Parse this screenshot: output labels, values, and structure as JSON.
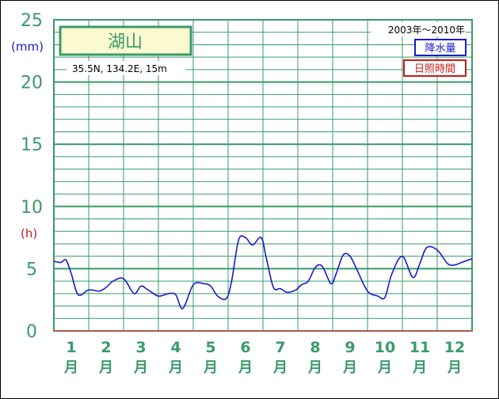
{
  "chart_data": {
    "type": "line",
    "station": "湖山",
    "coordinates": "35.5N,  134.2E,  15m",
    "period": "2003年〜2010年",
    "legend": [
      {
        "label": "降水量",
        "color": "#1a1acc"
      },
      {
        "label": "日照時間",
        "color": "#cc1a1a"
      }
    ],
    "y_unit_precip": "(mm)",
    "y_unit_sun": "(h)",
    "yticks": [
      "0",
      "5",
      "10",
      "15",
      "20",
      "25"
    ],
    "ylim": [
      0,
      25
    ],
    "months": [
      "1",
      "2",
      "3",
      "4",
      "5",
      "6",
      "7",
      "8",
      "9",
      "10",
      "11",
      "12"
    ],
    "month_char": "月",
    "series": [
      {
        "name": "降水量",
        "color": "#1a1acc",
        "x": [
          0.5,
          0.7,
          0.85,
          1.0,
          1.2,
          1.5,
          1.8,
          2.0,
          2.2,
          2.5,
          2.8,
          3.0,
          3.2,
          3.5,
          3.8,
          4.0,
          4.2,
          4.5,
          4.8,
          5.0,
          5.2,
          5.45,
          5.6,
          5.8,
          6.0,
          6.2,
          6.45,
          6.6,
          6.8,
          7.0,
          7.2,
          7.45,
          7.6,
          7.8,
          8.0,
          8.2,
          8.45,
          8.6,
          8.8,
          9.0,
          9.2,
          9.5,
          9.8,
          10.0,
          10.2,
          10.5,
          10.8,
          11.0,
          11.2,
          11.5,
          11.8,
          12.0,
          12.2,
          12.5
        ],
        "y": [
          5.6,
          5.5,
          5.7,
          4.6,
          2.9,
          3.3,
          3.2,
          3.5,
          4.0,
          4.2,
          3.0,
          3.6,
          3.3,
          2.8,
          3.0,
          2.9,
          1.8,
          3.7,
          3.8,
          3.6,
          2.8,
          2.6,
          4.0,
          7.3,
          7.5,
          6.9,
          7.5,
          5.8,
          3.5,
          3.4,
          3.1,
          3.3,
          3.7,
          4.0,
          5.1,
          5.2,
          3.8,
          4.6,
          6.1,
          6.0,
          4.9,
          3.2,
          2.8,
          2.7,
          4.6,
          6.0,
          4.3,
          5.4,
          6.7,
          6.5,
          5.4,
          5.3,
          5.5,
          5.8
        ]
      }
    ],
    "grid": true
  }
}
